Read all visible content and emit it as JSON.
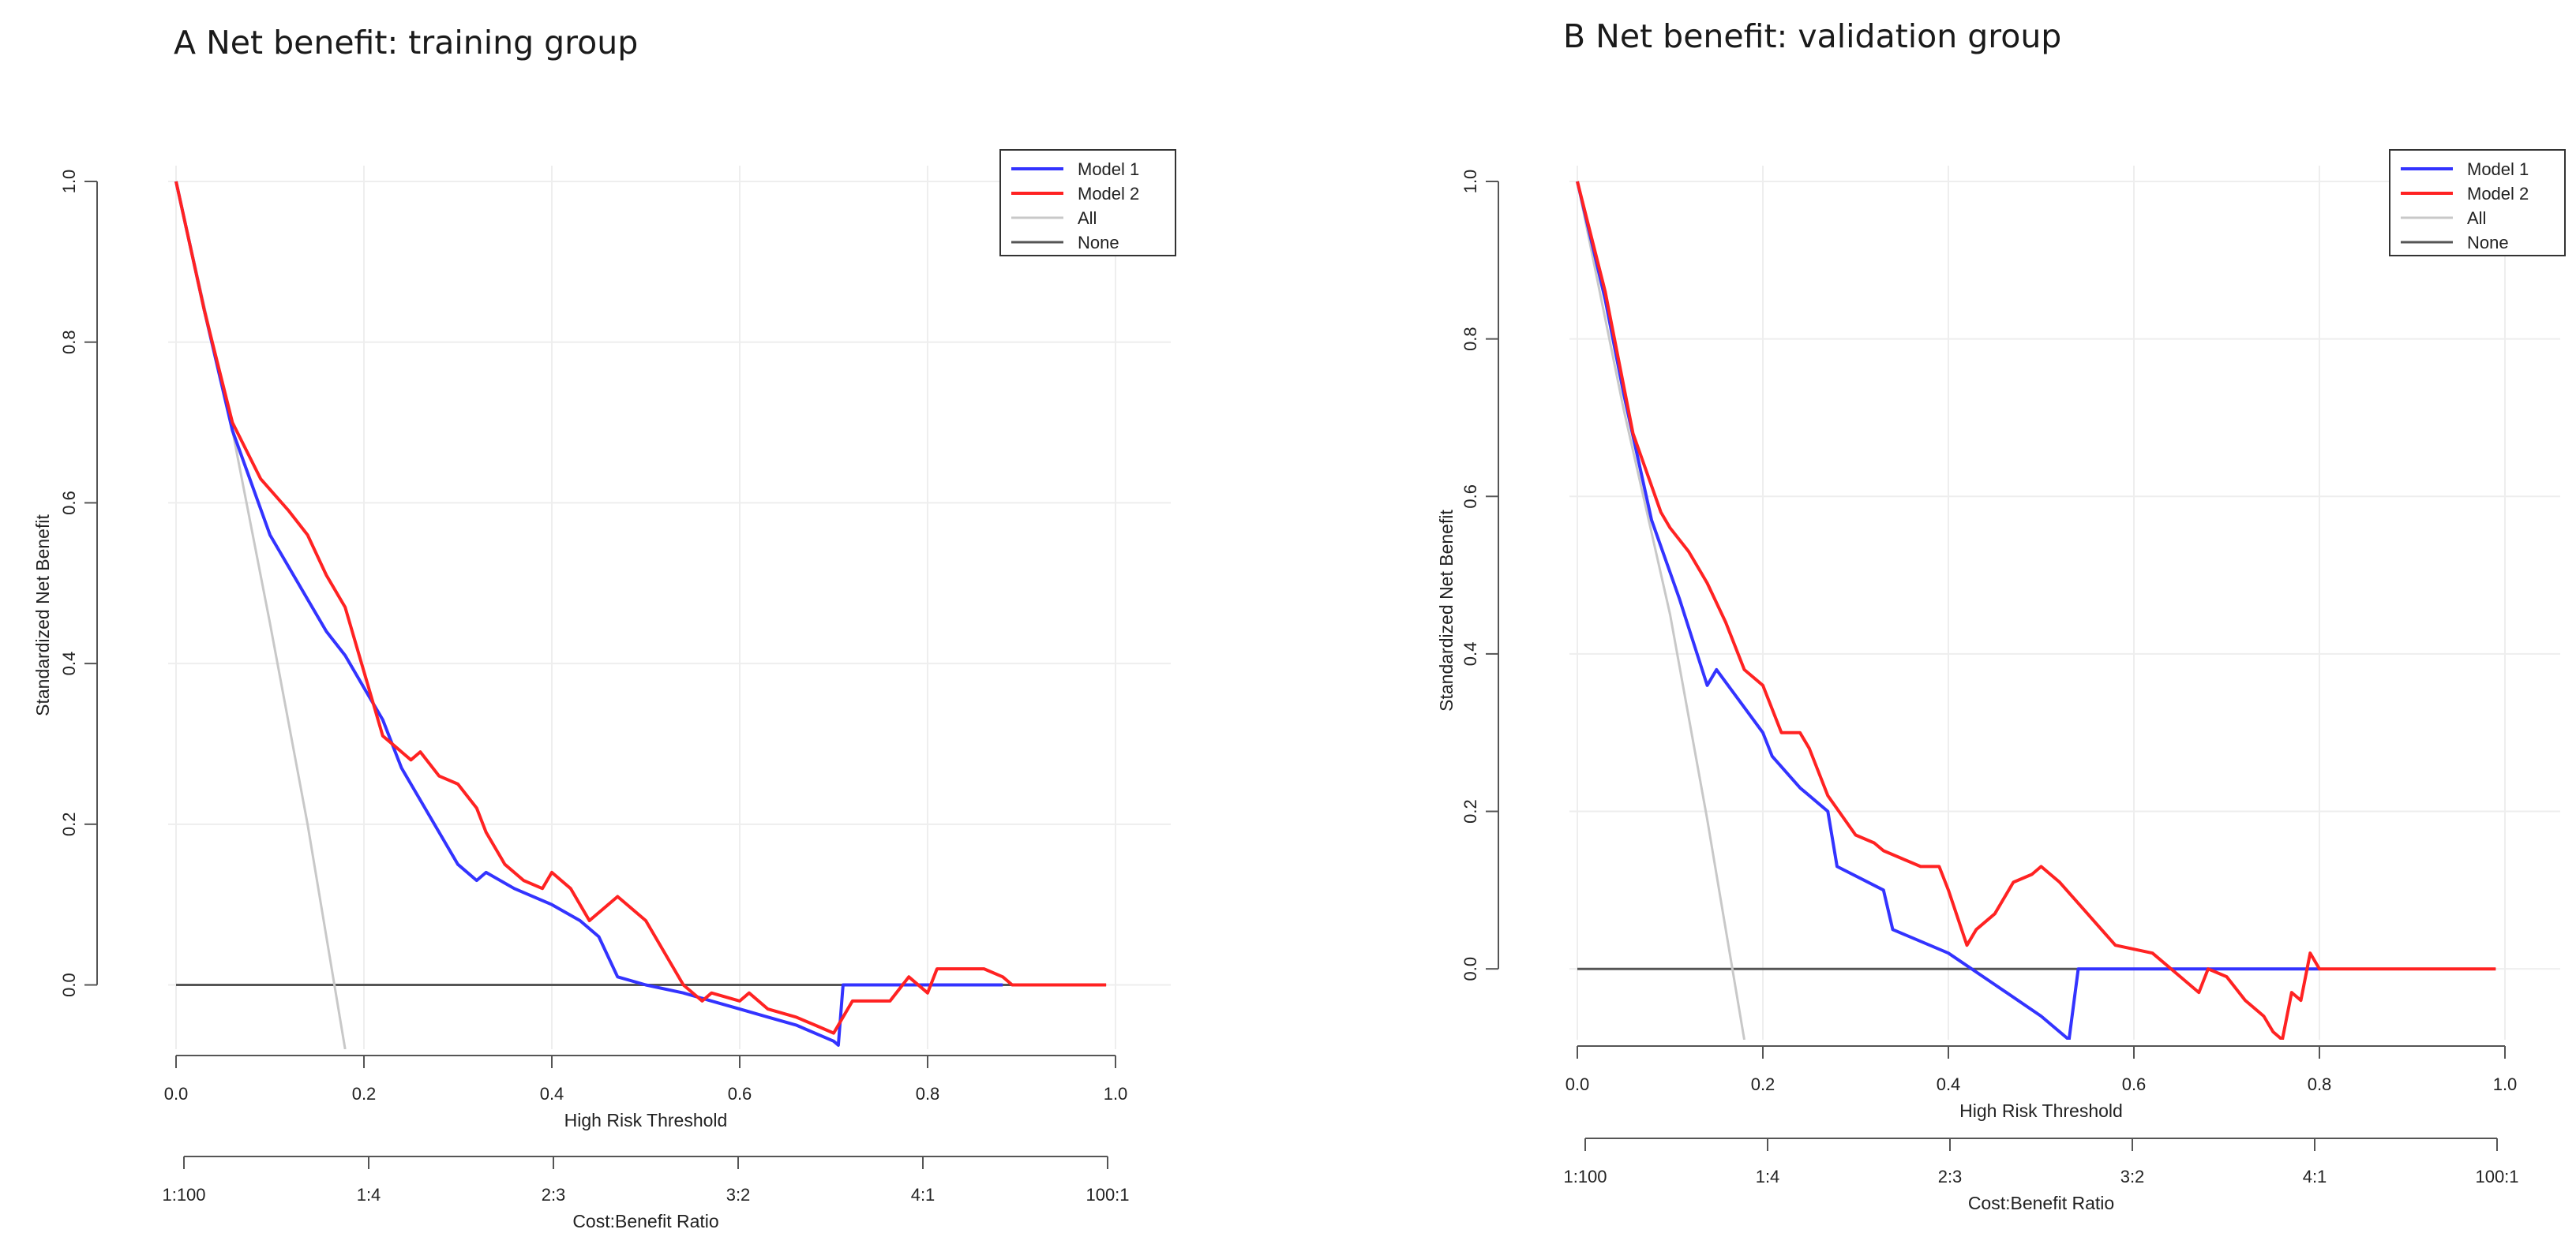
{
  "panels": [
    {
      "title": "A Net benefit: training group"
    },
    {
      "title": "B Net benefit: validation group"
    }
  ],
  "colors": {
    "model1": "#3333ff",
    "model2": "#ff2222",
    "all": "#c8c8c8",
    "none": "#555555",
    "grid": "#eeeeee"
  },
  "chart_data": [
    {
      "type": "line",
      "title": "A Net benefit: training group",
      "xlabel": "High Risk Threshold",
      "ylabel": "Standardized Net Benefit",
      "xlim": [
        0,
        1
      ],
      "ylim": [
        -0.08,
        1.0
      ],
      "x_ticks": [
        "0.0",
        "0.2",
        "0.4",
        "0.6",
        "0.8",
        "1.0"
      ],
      "y_ticks": [
        "0.0",
        "0.2",
        "0.4",
        "0.6",
        "0.8",
        "1.0"
      ],
      "secondary_axis": {
        "label": "Cost:Benefit Ratio",
        "ticks": [
          "1:100",
          "1:4",
          "2:3",
          "3:2",
          "4:1",
          "100:1"
        ]
      },
      "grid": true,
      "legend_position": "top-right",
      "legend": [
        "Model 1",
        "Model 2",
        "All",
        "None"
      ],
      "series": [
        {
          "name": "Model 1",
          "x": [
            0,
            0.03,
            0.06,
            0.1,
            0.13,
            0.16,
            0.18,
            0.2,
            0.22,
            0.24,
            0.27,
            0.3,
            0.32,
            0.33,
            0.36,
            0.4,
            0.43,
            0.45,
            0.47,
            0.5,
            0.54,
            0.57,
            0.6,
            0.63,
            0.66,
            0.7,
            0.705,
            0.71,
            0.75,
            0.8,
            0.88
          ],
          "y": [
            1.0,
            0.84,
            0.69,
            0.56,
            0.5,
            0.44,
            0.41,
            0.37,
            0.33,
            0.27,
            0.21,
            0.15,
            0.13,
            0.14,
            0.12,
            0.1,
            0.08,
            0.06,
            0.01,
            0.0,
            -0.01,
            -0.02,
            -0.03,
            -0.04,
            -0.05,
            -0.07,
            -0.075,
            0.0,
            0.0,
            0.0,
            0.0
          ]
        },
        {
          "name": "Model 2",
          "x": [
            0,
            0.03,
            0.06,
            0.09,
            0.12,
            0.14,
            0.16,
            0.18,
            0.2,
            0.22,
            0.24,
            0.25,
            0.26,
            0.28,
            0.3,
            0.32,
            0.33,
            0.35,
            0.37,
            0.39,
            0.4,
            0.42,
            0.44,
            0.46,
            0.47,
            0.5,
            0.52,
            0.54,
            0.56,
            0.57,
            0.6,
            0.61,
            0.63,
            0.66,
            0.68,
            0.7,
            0.71,
            0.72,
            0.76,
            0.78,
            0.8,
            0.81,
            0.86,
            0.88,
            0.89,
            0.99
          ],
          "y": [
            1.0,
            0.84,
            0.7,
            0.63,
            0.59,
            0.56,
            0.51,
            0.47,
            0.39,
            0.31,
            0.29,
            0.28,
            0.29,
            0.26,
            0.25,
            0.22,
            0.19,
            0.15,
            0.13,
            0.12,
            0.14,
            0.12,
            0.08,
            0.1,
            0.11,
            0.08,
            0.04,
            0.0,
            -0.02,
            -0.01,
            -0.02,
            -0.01,
            -0.03,
            -0.04,
            -0.05,
            -0.06,
            -0.04,
            -0.02,
            -0.02,
            0.01,
            -0.01,
            0.02,
            0.02,
            0.01,
            0.0,
            0.0
          ]
        },
        {
          "name": "All",
          "x": [
            0,
            0.06,
            0.1,
            0.14,
            0.18
          ],
          "y": [
            1.0,
            0.69,
            0.45,
            0.2,
            -0.08
          ]
        },
        {
          "name": "None",
          "x": [
            0,
            0.99
          ],
          "y": [
            0.0,
            0.0
          ]
        }
      ]
    },
    {
      "type": "line",
      "title": "B Net benefit: validation group",
      "xlabel": "High Risk Threshold",
      "ylabel": "Standardized Net Benefit",
      "xlim": [
        0,
        1
      ],
      "ylim": [
        -0.09,
        1.0
      ],
      "x_ticks": [
        "0.0",
        "0.2",
        "0.4",
        "0.6",
        "0.8",
        "1.0"
      ],
      "y_ticks": [
        "0.0",
        "0.2",
        "0.4",
        "0.6",
        "0.8",
        "1.0"
      ],
      "secondary_axis": {
        "label": "Cost:Benefit Ratio",
        "ticks": [
          "1:100",
          "1:4",
          "2:3",
          "3:2",
          "4:1",
          "100:1"
        ]
      },
      "grid": true,
      "legend_position": "top-right",
      "legend": [
        "Model 1",
        "Model 2",
        "All",
        "None"
      ],
      "series": [
        {
          "name": "Model 1",
          "x": [
            0,
            0.03,
            0.05,
            0.08,
            0.11,
            0.14,
            0.15,
            0.2,
            0.21,
            0.24,
            0.27,
            0.28,
            0.33,
            0.34,
            0.4,
            0.45,
            0.5,
            0.53,
            0.54,
            0.6,
            0.7,
            0.8
          ],
          "y": [
            1.0,
            0.85,
            0.73,
            0.57,
            0.47,
            0.36,
            0.38,
            0.3,
            0.27,
            0.23,
            0.2,
            0.13,
            0.1,
            0.05,
            0.02,
            -0.02,
            -0.06,
            -0.09,
            0.0,
            0.0,
            0.0,
            0.0
          ]
        },
        {
          "name": "Model 2",
          "x": [
            0,
            0.03,
            0.06,
            0.09,
            0.1,
            0.12,
            0.14,
            0.16,
            0.18,
            0.2,
            0.22,
            0.24,
            0.25,
            0.27,
            0.3,
            0.32,
            0.33,
            0.35,
            0.37,
            0.39,
            0.4,
            0.42,
            0.43,
            0.45,
            0.47,
            0.49,
            0.5,
            0.52,
            0.55,
            0.58,
            0.62,
            0.65,
            0.67,
            0.68,
            0.7,
            0.72,
            0.74,
            0.75,
            0.76,
            0.77,
            0.78,
            0.79,
            0.8,
            0.99
          ],
          "y": [
            1.0,
            0.86,
            0.68,
            0.58,
            0.56,
            0.53,
            0.49,
            0.44,
            0.38,
            0.36,
            0.3,
            0.3,
            0.28,
            0.22,
            0.17,
            0.16,
            0.15,
            0.14,
            0.13,
            0.13,
            0.1,
            0.03,
            0.05,
            0.07,
            0.11,
            0.12,
            0.13,
            0.11,
            0.07,
            0.03,
            0.02,
            -0.01,
            -0.03,
            0.0,
            -0.01,
            -0.04,
            -0.06,
            -0.08,
            -0.09,
            -0.03,
            -0.04,
            0.02,
            0.0,
            0.0
          ]
        },
        {
          "name": "All",
          "x": [
            0,
            0.05,
            0.1,
            0.14,
            0.18
          ],
          "y": [
            1.0,
            0.71,
            0.45,
            0.19,
            -0.09
          ]
        },
        {
          "name": "None",
          "x": [
            0,
            0.99
          ],
          "y": [
            0.0,
            0.0
          ]
        }
      ]
    }
  ]
}
